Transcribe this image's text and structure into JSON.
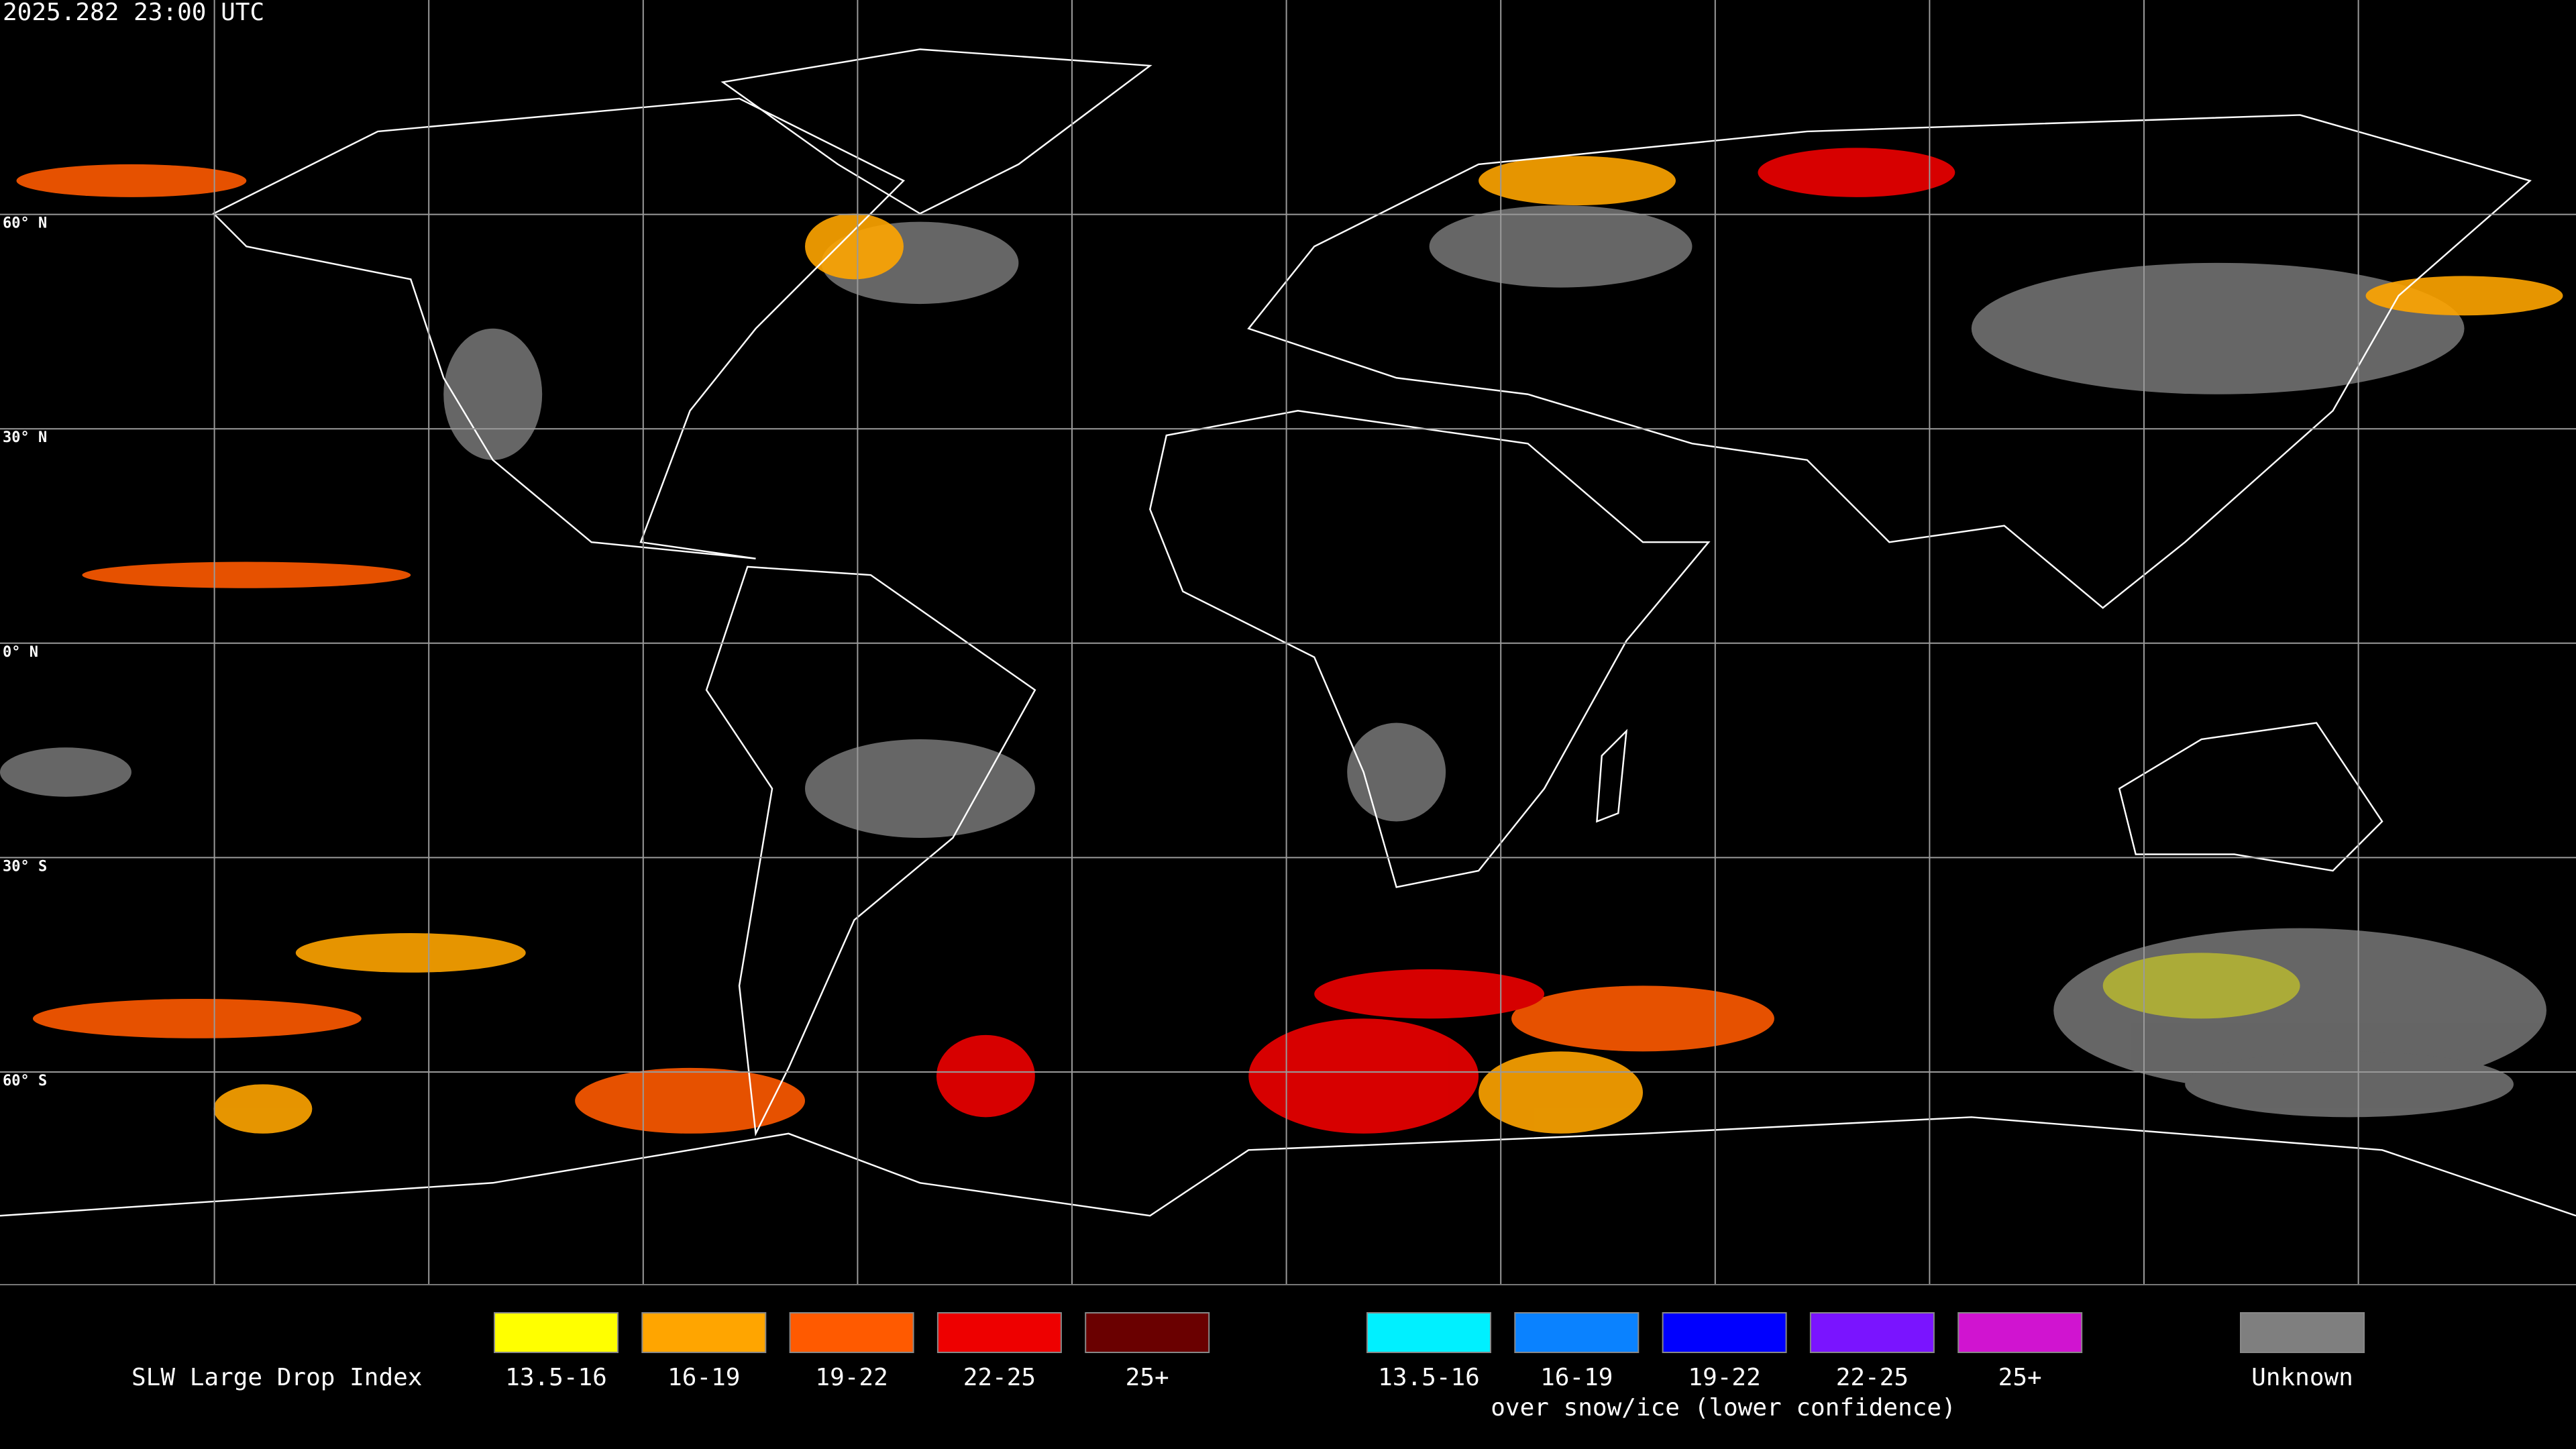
{
  "header": {
    "timestamp": "2025.282 23:00 UTC"
  },
  "map": {
    "latitude_labels": [
      "60° N",
      "30° N",
      "0° N",
      "30° S",
      "60° S"
    ]
  },
  "legend": {
    "title": "SLW Large Drop Index",
    "groups": [
      {
        "items": [
          {
            "label": "13.5-16",
            "color": "#ffff00"
          },
          {
            "label": "16-19",
            "color": "#ffa500"
          },
          {
            "label": "19-22",
            "color": "#ff5a00"
          },
          {
            "label": "22-25",
            "color": "#ee0000"
          },
          {
            "label": "25+",
            "color": "#6a0000"
          }
        ]
      },
      {
        "items": [
          {
            "label": "13.5-16",
            "color": "#00f0ff"
          },
          {
            "label": "16-19",
            "color": "#0a82ff"
          },
          {
            "label": "19-22",
            "color": "#0000ff"
          },
          {
            "label": "22-25",
            "color": "#7a14ff"
          },
          {
            "label": "25+",
            "color": "#d014d0"
          }
        ],
        "caption": "over snow/ice (lower confidence)"
      }
    ],
    "unknown": {
      "label": "Unknown",
      "color": "#7f7f7f"
    }
  }
}
